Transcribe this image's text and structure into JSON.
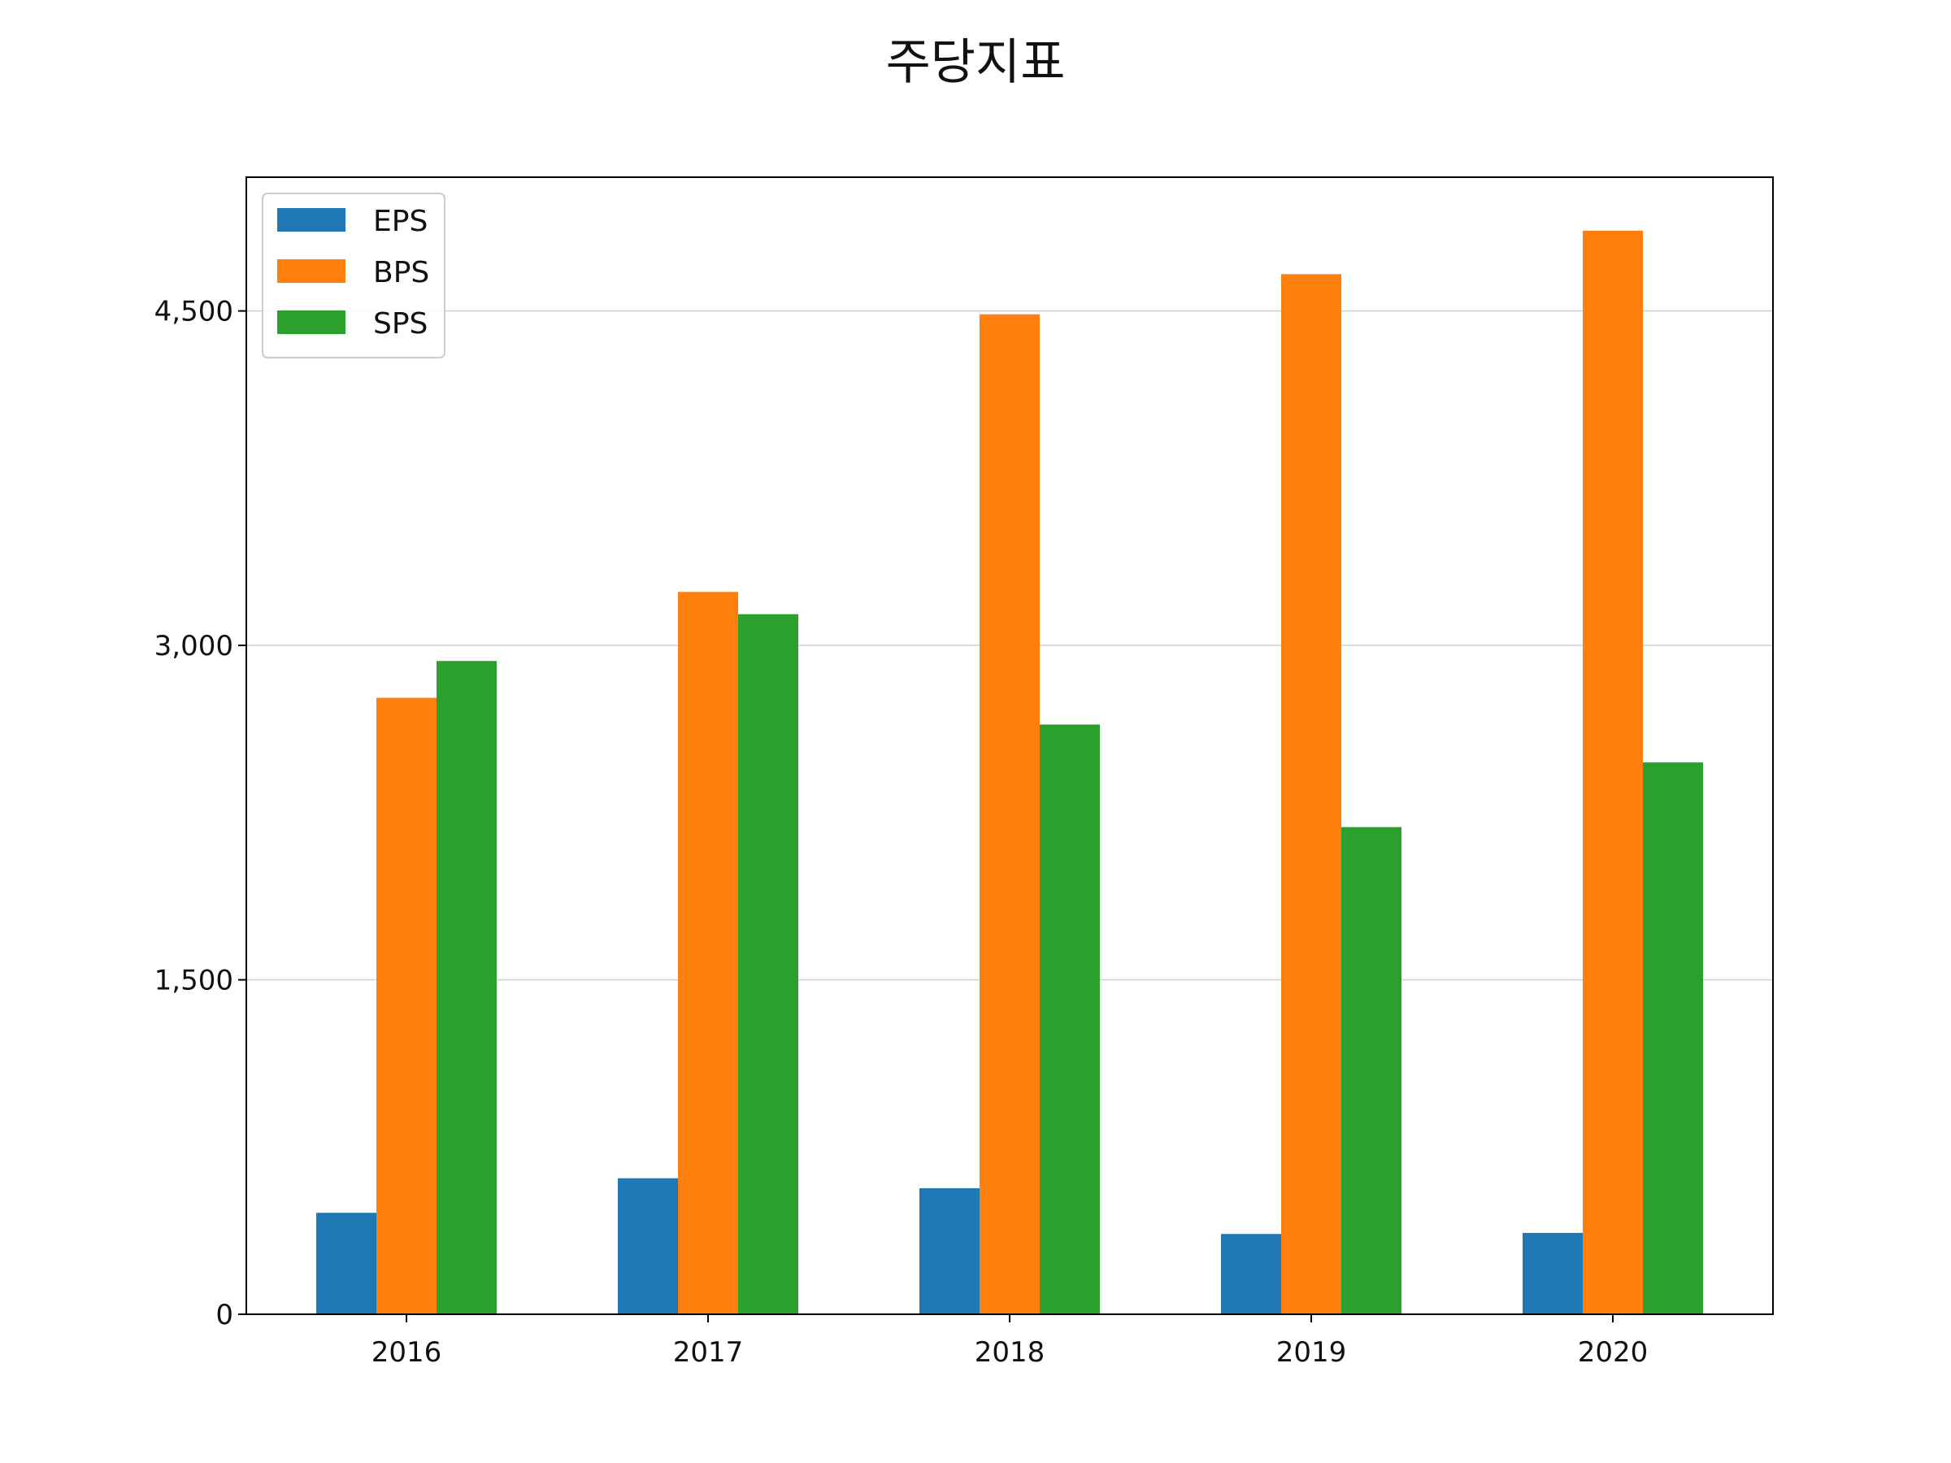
{
  "chart_data": {
    "type": "bar",
    "title": "주당지표",
    "xlabel": "",
    "ylabel": "",
    "categories": [
      "2016",
      "2017",
      "2018",
      "2019",
      "2020"
    ],
    "series": [
      {
        "name": "EPS",
        "color": "#1f77b4",
        "values": [
          455,
          610,
          565,
          360,
          365
        ]
      },
      {
        "name": "BPS",
        "color": "#ff7f0e",
        "values": [
          2765,
          3240,
          4485,
          4665,
          4860
        ]
      },
      {
        "name": "SPS",
        "color": "#2ca02c",
        "values": [
          2930,
          3140,
          2645,
          2185,
          2475
        ]
      }
    ],
    "ylim": [
      0,
      5100
    ],
    "yticks": [
      0,
      1500,
      3000,
      4500
    ],
    "ytick_labels": [
      "0",
      "1,500",
      "3,000",
      "4,500"
    ],
    "grid": "horizontal",
    "legend": "top-left"
  }
}
